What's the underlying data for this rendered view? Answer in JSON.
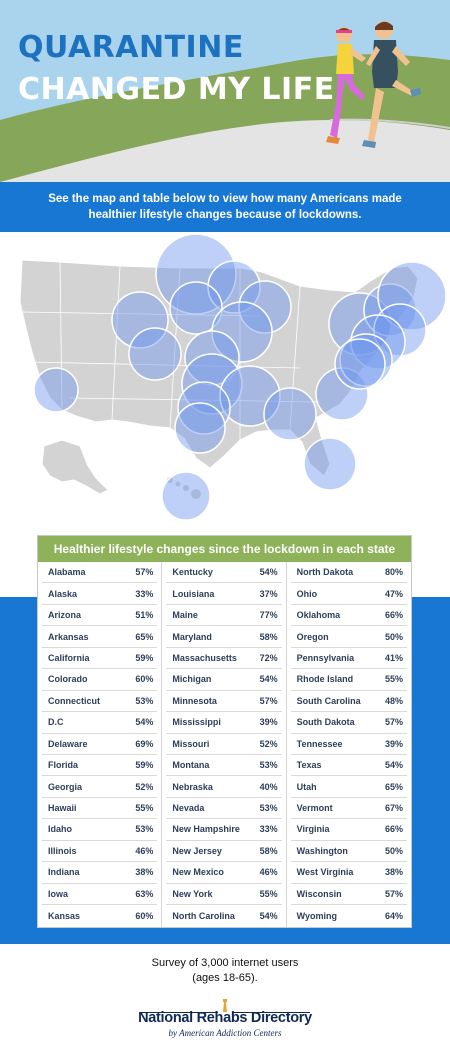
{
  "header": {
    "title_line1": "QUARANTINE",
    "title_line2": "CHANGED MY LIFE"
  },
  "intro": {
    "text": "See the map and table below to view how many Americans made healthier lifestyle changes because of lockdowns."
  },
  "colors": {
    "sky": "#aad4ee",
    "grass": "#86a65a",
    "road": "#e4e4e4",
    "band_blue": "#1877d3",
    "title_blue": "#1d72bf",
    "table_header_green": "#8eb25a",
    "map_gray": "#d3d3d3",
    "bubble_fill": "#6f97ee",
    "brand_navy": "#0f2a55"
  },
  "chart_data": {
    "type": "table",
    "title": "Healthier lifestyle changes since the lockdown in each state",
    "columns": [
      [
        {
          "state": "Alabama",
          "pct": "57%"
        },
        {
          "state": "Alaska",
          "pct": "33%"
        },
        {
          "state": "Arizona",
          "pct": "51%"
        },
        {
          "state": "Arkansas",
          "pct": "65%"
        },
        {
          "state": "California",
          "pct": "59%"
        },
        {
          "state": "Colorado",
          "pct": "60%"
        },
        {
          "state": "Connecticut",
          "pct": "53%"
        },
        {
          "state": "D.C",
          "pct": "54%"
        },
        {
          "state": "Delaware",
          "pct": "69%"
        },
        {
          "state": "Florida",
          "pct": "59%"
        },
        {
          "state": "Georgia",
          "pct": "52%"
        },
        {
          "state": "Hawaii",
          "pct": "55%"
        },
        {
          "state": "Idaho",
          "pct": "53%"
        },
        {
          "state": "Illinois",
          "pct": "46%"
        },
        {
          "state": "Indiana",
          "pct": "38%"
        },
        {
          "state": "Iowa",
          "pct": "63%"
        },
        {
          "state": "Kansas",
          "pct": "60%"
        }
      ],
      [
        {
          "state": "Kentucky",
          "pct": "54%"
        },
        {
          "state": "Louisiana",
          "pct": "37%"
        },
        {
          "state": "Maine",
          "pct": "77%"
        },
        {
          "state": "Maryland",
          "pct": "58%"
        },
        {
          "state": "Massachusetts",
          "pct": "72%"
        },
        {
          "state": "Michigan",
          "pct": "54%"
        },
        {
          "state": "Minnesota",
          "pct": "57%"
        },
        {
          "state": "Mississippi",
          "pct": "39%"
        },
        {
          "state": "Missouri",
          "pct": "52%"
        },
        {
          "state": "Montana",
          "pct": "53%"
        },
        {
          "state": "Nebraska",
          "pct": "40%"
        },
        {
          "state": "Nevada",
          "pct": "53%"
        },
        {
          "state": "New Hampshire",
          "pct": "33%"
        },
        {
          "state": "New Jersey",
          "pct": "58%"
        },
        {
          "state": "New Mexico",
          "pct": "46%"
        },
        {
          "state": "New York",
          "pct": "55%"
        },
        {
          "state": "North Carolina",
          "pct": "54%"
        }
      ],
      [
        {
          "state": "North Dakota",
          "pct": "80%"
        },
        {
          "state": "Ohio",
          "pct": "47%"
        },
        {
          "state": "Oklahoma",
          "pct": "66%"
        },
        {
          "state": "Oregon",
          "pct": "50%"
        },
        {
          "state": "Pennsylvania",
          "pct": "41%"
        },
        {
          "state": "Rhode Island",
          "pct": "55%"
        },
        {
          "state": "South Carolina",
          "pct": "48%"
        },
        {
          "state": "South Dakota",
          "pct": "57%"
        },
        {
          "state": "Tennessee",
          "pct": "39%"
        },
        {
          "state": "Texas",
          "pct": "54%"
        },
        {
          "state": "Utah",
          "pct": "65%"
        },
        {
          "state": "Vermont",
          "pct": "67%"
        },
        {
          "state": "Virginia",
          "pct": "66%"
        },
        {
          "state": "Washington",
          "pct": "50%"
        },
        {
          "state": "West Virginia",
          "pct": "38%"
        },
        {
          "state": "Wisconsin",
          "pct": "57%"
        },
        {
          "state": "Wyoming",
          "pct": "64%"
        }
      ]
    ]
  },
  "footer": {
    "survey_line1": "Survey of 3,000 internet users",
    "survey_line2": "(ages 18-65).",
    "brand_name": "National Rehabs Directory",
    "brand_sub": "by American Addiction Centers"
  }
}
